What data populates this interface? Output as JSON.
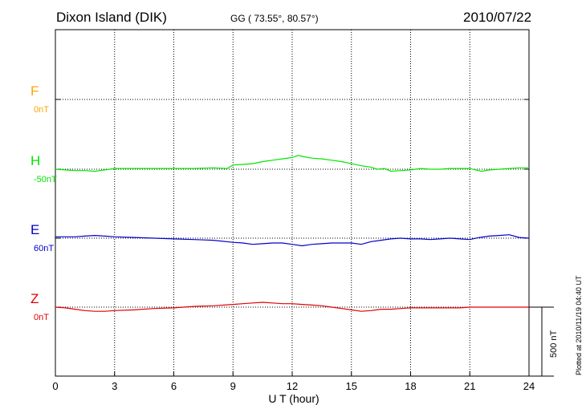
{
  "header": {
    "station": "Dixon Island (DIK)",
    "coords": "GG ( 73.55°,  80.57°)",
    "date": "2010/07/22"
  },
  "footer": {
    "plotted": "Plotted at 2010/11/19 04:40 UT"
  },
  "chart_data": {
    "type": "line",
    "xlabel": "U T (hour)",
    "xlim": [
      0,
      24
    ],
    "xticks": [
      "0",
      "3",
      "6",
      "9",
      "12",
      "15",
      "18",
      "21",
      "24"
    ],
    "scale_bar_label": "500 nT",
    "scale_bar_value_nT": 500,
    "grid": true,
    "series": [
      {
        "name": "F",
        "baseline_label": "0nT",
        "color": "#ffa500",
        "x": [],
        "y": []
      },
      {
        "name": "H",
        "baseline_label": "-50nT",
        "color": "#00e600",
        "x": [
          0,
          0.5,
          1,
          1.5,
          2,
          2.5,
          3,
          4,
          5,
          6,
          7,
          8,
          8.7,
          9,
          9.5,
          10,
          10.5,
          11,
          11.5,
          12,
          12.3,
          12.6,
          13,
          13.5,
          14,
          14.5,
          15,
          15.5,
          16,
          16.3,
          16.7,
          17,
          17.5,
          18,
          18.5,
          19,
          19.5,
          20,
          20.5,
          21,
          21.3,
          21.6,
          22,
          22.5,
          23,
          23.5,
          24
        ],
        "y": [
          -50,
          -55,
          -60,
          -60,
          -65,
          -55,
          -45,
          -45,
          -45,
          -45,
          -45,
          -40,
          -45,
          -20,
          -15,
          -10,
          5,
          15,
          25,
          35,
          50,
          40,
          30,
          25,
          15,
          5,
          -10,
          -25,
          -35,
          -50,
          -45,
          -65,
          -60,
          -55,
          -45,
          -50,
          -50,
          -45,
          -45,
          -45,
          -55,
          -65,
          -55,
          -50,
          -45,
          -40,
          -40
        ]
      },
      {
        "name": "E",
        "baseline_label": "60nT",
        "color": "#0000cc",
        "x": [
          0,
          0.5,
          1,
          1.5,
          2,
          2.5,
          3,
          4,
          5,
          6,
          7,
          8,
          9,
          9.5,
          10,
          10.5,
          11,
          11.5,
          12,
          12.5,
          13,
          13.5,
          14,
          14.5,
          15,
          15.5,
          16,
          16.5,
          17,
          17.5,
          18,
          18.5,
          19,
          19.5,
          20,
          20.5,
          21,
          21.5,
          22,
          22.5,
          23,
          23.5,
          24
        ],
        "y": [
          70,
          70,
          70,
          75,
          80,
          75,
          70,
          65,
          60,
          55,
          50,
          45,
          30,
          25,
          15,
          20,
          25,
          25,
          15,
          5,
          15,
          20,
          25,
          25,
          25,
          15,
          35,
          45,
          55,
          60,
          55,
          55,
          50,
          55,
          60,
          55,
          50,
          65,
          75,
          80,
          85,
          65,
          60
        ]
      },
      {
        "name": "Z",
        "baseline_label": "0nT",
        "color": "#e00000",
        "x": [
          0,
          0.5,
          1,
          1.5,
          2,
          2.5,
          3,
          4,
          5,
          6,
          7,
          8,
          9,
          9.5,
          10,
          10.5,
          11,
          11.5,
          12,
          12.5,
          13,
          13.5,
          14,
          14.5,
          15,
          15.5,
          16,
          16.5,
          17,
          17.5,
          18,
          18.5,
          19,
          19.5,
          20,
          20.5,
          21,
          21.5,
          22,
          22.5,
          23,
          23.5,
          24
        ],
        "y": [
          0,
          -5,
          -15,
          -25,
          -30,
          -30,
          -25,
          -20,
          -10,
          -5,
          5,
          10,
          20,
          25,
          30,
          35,
          30,
          25,
          25,
          20,
          15,
          10,
          0,
          -10,
          -20,
          -30,
          -25,
          -15,
          -15,
          -10,
          -5,
          -5,
          -5,
          -5,
          -5,
          -5,
          0,
          0,
          0,
          0,
          0,
          0,
          0
        ]
      }
    ]
  }
}
